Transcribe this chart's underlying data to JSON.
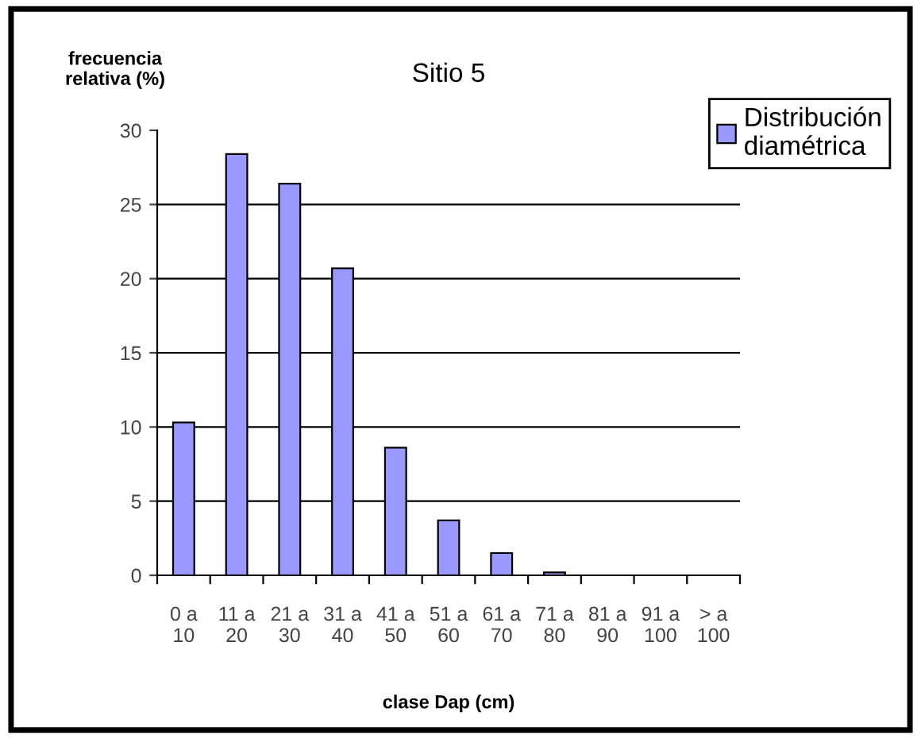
{
  "chart_data": {
    "type": "bar",
    "title": "Sitio 5",
    "xlabel": "clase Dap (cm)",
    "ylabel": "frecuencia\nrelativa (%)",
    "categories": [
      "0 a\n10",
      "11 a\n20",
      "21 a\n30",
      "31 a\n40",
      "41 a\n50",
      "51 a\n60",
      "61 a\n70",
      "71 a\n80",
      "81 a\n90",
      "91 a\n100",
      "> a\n100"
    ],
    "series": [
      {
        "name": "Distribución\ndiamétrica",
        "color": "#9999ff",
        "values": [
          10.3,
          28.4,
          26.4,
          20.7,
          8.6,
          3.7,
          1.5,
          0.2,
          0,
          0,
          0
        ]
      }
    ],
    "ylim": [
      0,
      30
    ],
    "yticks": [
      0,
      5,
      10,
      15,
      20,
      25,
      30
    ],
    "grid": "y",
    "legend": "top right"
  }
}
